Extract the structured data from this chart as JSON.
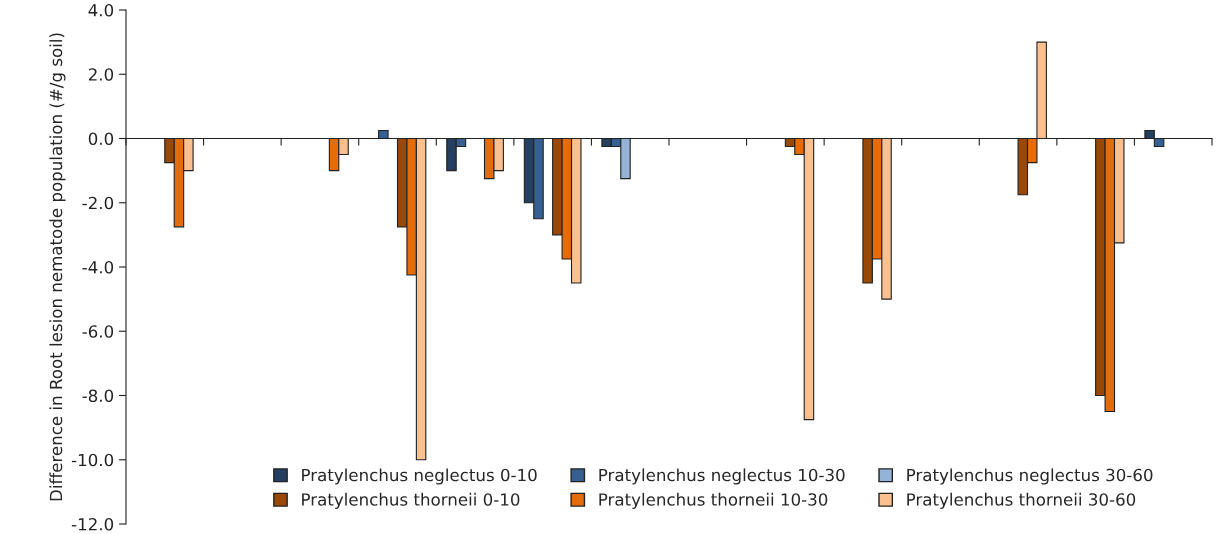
{
  "chart_data": {
    "type": "bar",
    "ylabel": "Difference in Root lesion nematode population (#/g soil)",
    "categories": [
      null,
      null,
      null,
      null,
      null,
      null,
      null,
      null,
      null,
      null,
      null,
      null,
      null,
      null
    ],
    "series": [
      {
        "name": "Pratylenchus neglectus 0-10",
        "color": "#243f60",
        "values": [
          null,
          null,
          null,
          null,
          -1.0,
          -2.0,
          -0.25,
          null,
          null,
          null,
          null,
          null,
          null,
          0.25
        ]
      },
      {
        "name": "Pratylenchus neglectus 10-30",
        "color": "#376092",
        "values": [
          null,
          null,
          null,
          0.25,
          -0.25,
          -2.5,
          -0.25,
          null,
          null,
          null,
          null,
          null,
          null,
          -0.25
        ]
      },
      {
        "name": "Pratylenchus neglectus 30-60",
        "color": "#95b3d7",
        "values": [
          null,
          null,
          null,
          null,
          null,
          null,
          -1.25,
          null,
          null,
          null,
          null,
          null,
          null,
          null
        ]
      },
      {
        "name": "Pratylenchus thorneii 0-10",
        "color": "#984807",
        "values": [
          -0.75,
          null,
          null,
          -2.75,
          null,
          -3.0,
          null,
          null,
          -0.25,
          -4.5,
          null,
          -1.75,
          -8.0,
          null
        ]
      },
      {
        "name": "Pratylenchus thorneii 10-30",
        "color": "#e46c0a",
        "values": [
          -2.75,
          null,
          -1.0,
          -4.25,
          -1.25,
          -3.75,
          null,
          null,
          -0.5,
          -3.75,
          null,
          -0.75,
          -8.5,
          null
        ]
      },
      {
        "name": "Pratylenchus thorneii 30-60",
        "color": "#fac090",
        "values": [
          -1.0,
          null,
          -0.5,
          -10.0,
          -1.0,
          -4.5,
          null,
          null,
          -8.75,
          -5.0,
          null,
          3.0,
          -3.25,
          null
        ]
      }
    ],
    "ylim": [
      -12,
      4
    ],
    "yticks": [
      {
        "value": -12,
        "label": "-12.0"
      },
      {
        "value": -10,
        "label": "-10.0"
      },
      {
        "value": -8,
        "label": "-8.0"
      },
      {
        "value": -6,
        "label": "-6.0"
      },
      {
        "value": -4,
        "label": "-4.0"
      },
      {
        "value": -2,
        "label": "-2.0"
      },
      {
        "value": 0,
        "label": "0.0"
      },
      {
        "value": 2,
        "label": "2.0"
      },
      {
        "value": 4,
        "label": "4.0"
      }
    ],
    "tick_labels": "y",
    "legend": "bottom right"
  }
}
